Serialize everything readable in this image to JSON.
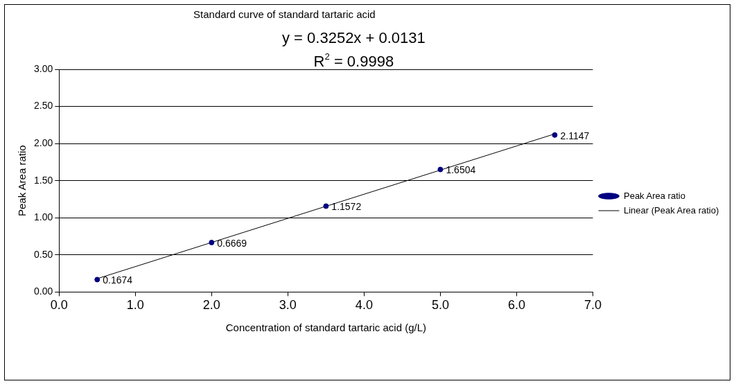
{
  "chart_data": {
    "type": "scatter",
    "title": "Standard curve of standard tartaric acid",
    "xlabel": "Concentration of standard tartaric acid (g/L)",
    "ylabel": "Peak Area ratio",
    "annotations": [
      "y = 0.3252x + 0.0131",
      "R$^{2}$ = 0.9998"
    ],
    "series": [
      {
        "name": "Peak Area ratio",
        "color": "#000080",
        "x": [
          0.5,
          2,
          3.5,
          5,
          6.5
        ],
        "values": [
          0.1674,
          0.6669,
          1.1572,
          1.6504,
          2.1147
        ],
        "data_labels": true,
        "marker": "circle"
      },
      {
        "name": "Linear (Peak Area ratio)",
        "type": "line",
        "color": "#000000",
        "x": [
          0.5,
          6.5
        ],
        "values": [
          0.18,
          2.13
        ],
        "marker": "none",
        "line_style": "solid"
      }
    ],
    "xlim": [
      0,
      7
    ],
    "xticks": [
      {
        "value": 0,
        "label": "0.0"
      },
      {
        "value": 1,
        "label": "1.0"
      },
      {
        "value": 2,
        "label": "2.0"
      },
      {
        "value": 3,
        "label": "3.0"
      },
      {
        "value": 4,
        "label": "4.0"
      },
      {
        "value": 5,
        "label": "5.0"
      },
      {
        "value": 6,
        "label": "6.0"
      },
      {
        "value": 7,
        "label": "7.0"
      }
    ],
    "ylim": [
      0,
      3
    ],
    "yticks": [
      {
        "value": 0,
        "label": "0.00"
      },
      {
        "value": 0.5,
        "label": "0.50"
      },
      {
        "value": 1,
        "label": "1.00"
      },
      {
        "value": 1.5,
        "label": "1.50"
      },
      {
        "value": 2,
        "label": "2.00"
      },
      {
        "value": 2.5,
        "label": "2.50"
      },
      {
        "value": 3,
        "label": "3.00"
      }
    ],
    "grid": "y",
    "legend": "right"
  }
}
